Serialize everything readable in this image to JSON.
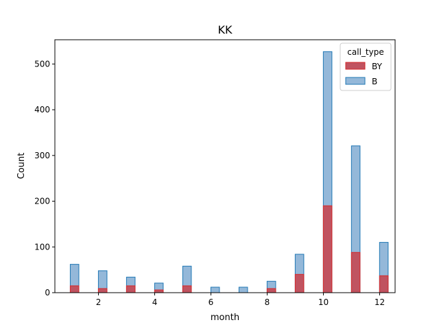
{
  "chart_data": {
    "type": "bar",
    "title": "KK",
    "xlabel": "month",
    "ylabel": "Count",
    "xlim": [
      0.45,
      12.55
    ],
    "ylim": [
      0,
      553
    ],
    "xticks": [
      2,
      4,
      6,
      8,
      10,
      12
    ],
    "yticks": [
      0,
      100,
      200,
      300,
      400,
      500
    ],
    "bin_width": 0.306,
    "x": [
      1.15,
      2.15,
      3.15,
      4.15,
      5.15,
      6.15,
      7.15,
      8.15,
      9.15,
      10.15,
      11.15,
      12.15
    ],
    "series": [
      {
        "name": "B",
        "values": [
          62,
          48,
          34,
          21,
          58,
          12,
          12,
          25,
          84,
          527,
          321,
          110
        ],
        "color": "#1f77b4",
        "fill": "#94b8d9"
      },
      {
        "name": "BY",
        "values": [
          15,
          9,
          15,
          6,
          15,
          0,
          0,
          9,
          40,
          190,
          88,
          37
        ],
        "color": "#d62728",
        "fill": "#c05360"
      }
    ],
    "legend": {
      "title": "call_type",
      "entries": [
        "BY",
        "B"
      ],
      "placement": "top-right"
    },
    "grid": false
  }
}
